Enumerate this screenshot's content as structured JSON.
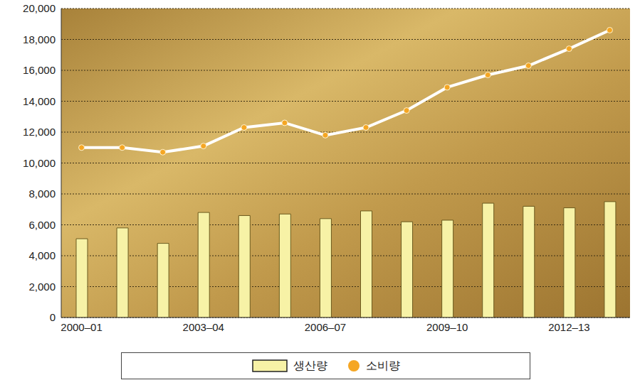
{
  "chart_data": {
    "type": "bar",
    "categories": [
      "2000–01",
      null,
      null,
      "2003–04",
      null,
      null,
      "2006–07",
      null,
      null,
      "2009–10",
      null,
      null,
      "2012–13",
      null
    ],
    "series": [
      {
        "name": "생산량",
        "type": "bar",
        "color": "#f7f2a6",
        "values": [
          5100,
          5800,
          4800,
          6800,
          6600,
          6700,
          6400,
          6900,
          6200,
          6300,
          7400,
          7200,
          7100,
          7500
        ]
      },
      {
        "name": "소비량",
        "type": "line",
        "color": "#f5a623",
        "marker": "circle",
        "values": [
          11000,
          11000,
          10700,
          11100,
          12300,
          12600,
          11800,
          12300,
          13400,
          14900,
          15700,
          16300,
          17400,
          18600
        ]
      }
    ],
    "ylim": [
      0,
      20000
    ],
    "yticks": [
      0,
      {
        "value": 2000,
        "label": "2,000"
      },
      {
        "value": 4000,
        "label": "4,000"
      },
      {
        "value": 6000,
        "label": "6,000"
      },
      {
        "value": 8000,
        "label": "8,000"
      },
      {
        "value": 10000,
        "label": "10,000"
      },
      {
        "value": 12000,
        "label": "12,000"
      },
      {
        "value": 14000,
        "label": "14,000"
      },
      {
        "value": 16000,
        "label": "16,000"
      },
      {
        "value": 18000,
        "label": "18,000"
      },
      {
        "value": 20000,
        "label": "20,000"
      }
    ],
    "grid": true,
    "legend": "bottom"
  }
}
